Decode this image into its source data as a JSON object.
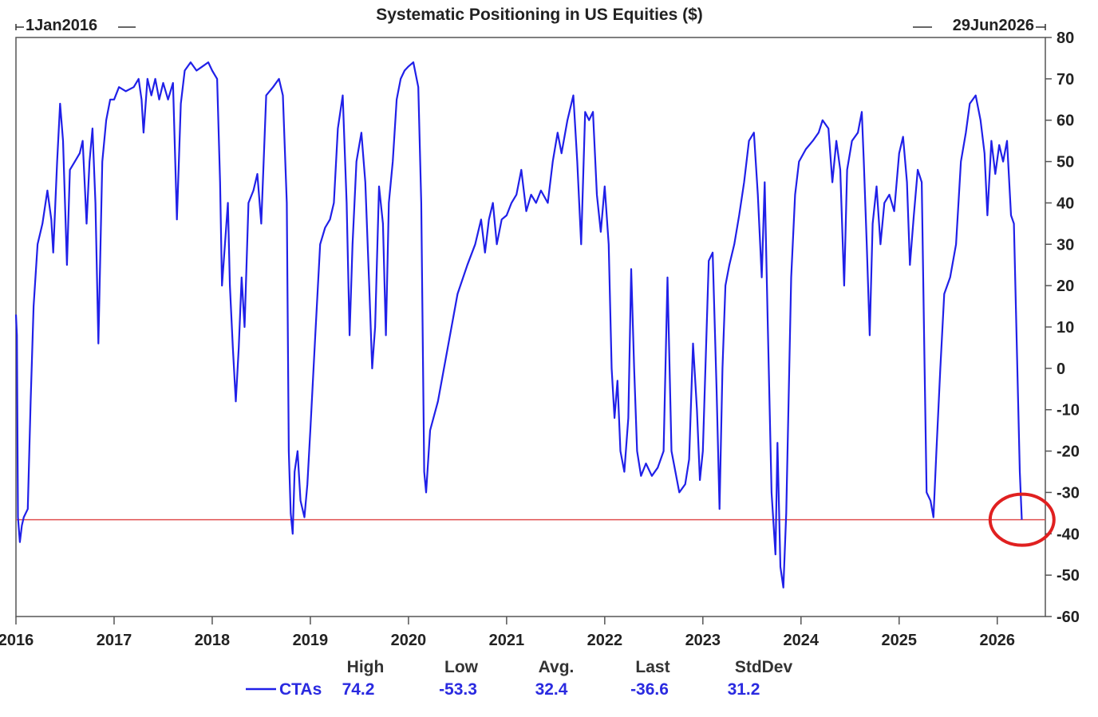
{
  "chart_data": {
    "type": "line",
    "title": "Systematic Positioning in US Equities ($)",
    "range_start_label": "1Jan2016",
    "range_end_label": "29Jun2026",
    "x_domain": [
      "2016-01-01",
      "2026-06-29"
    ],
    "x_tick_labels": [
      "2016",
      "2017",
      "2018",
      "2019",
      "2020",
      "2021",
      "2022",
      "2023",
      "2024",
      "2025",
      "2026"
    ],
    "y_ticks": [
      80,
      70,
      60,
      50,
      40,
      30,
      20,
      10,
      0,
      -10,
      -20,
      -30,
      -40,
      -50,
      -60
    ],
    "ylim": [
      -60,
      80
    ],
    "reference_line": {
      "value": -36.6,
      "color": "#e05050"
    },
    "highlight_circle": {
      "x": 2026.22,
      "y": -36.6,
      "color": "#e02020"
    },
    "series": [
      {
        "name": "CTAs",
        "color": "#2020e8",
        "points": [
          [
            2016.0,
            13
          ],
          [
            2016.01,
            8
          ],
          [
            2016.02,
            -36
          ],
          [
            2016.04,
            -42
          ],
          [
            2016.06,
            -38
          ],
          [
            2016.08,
            -36
          ],
          [
            2016.12,
            -34
          ],
          [
            2016.15,
            -8
          ],
          [
            2016.18,
            15
          ],
          [
            2016.22,
            30
          ],
          [
            2016.27,
            35
          ],
          [
            2016.32,
            43
          ],
          [
            2016.36,
            36
          ],
          [
            2016.38,
            28
          ],
          [
            2016.42,
            50
          ],
          [
            2016.45,
            64
          ],
          [
            2016.48,
            55
          ],
          [
            2016.52,
            25
          ],
          [
            2016.55,
            48
          ],
          [
            2016.6,
            50
          ],
          [
            2016.65,
            52
          ],
          [
            2016.68,
            55
          ],
          [
            2016.72,
            35
          ],
          [
            2016.75,
            50
          ],
          [
            2016.78,
            58
          ],
          [
            2016.81,
            40
          ],
          [
            2016.84,
            6
          ],
          [
            2016.88,
            50
          ],
          [
            2016.92,
            60
          ],
          [
            2016.96,
            65
          ],
          [
            2017.0,
            65
          ],
          [
            2017.05,
            68
          ],
          [
            2017.12,
            67
          ],
          [
            2017.2,
            68
          ],
          [
            2017.25,
            70
          ],
          [
            2017.28,
            65
          ],
          [
            2017.3,
            57
          ],
          [
            2017.34,
            70
          ],
          [
            2017.38,
            66
          ],
          [
            2017.42,
            70
          ],
          [
            2017.46,
            65
          ],
          [
            2017.5,
            69
          ],
          [
            2017.55,
            65
          ],
          [
            2017.6,
            69
          ],
          [
            2017.64,
            36
          ],
          [
            2017.68,
            64
          ],
          [
            2017.72,
            72
          ],
          [
            2017.78,
            74
          ],
          [
            2017.84,
            72
          ],
          [
            2017.9,
            73
          ],
          [
            2017.96,
            74
          ],
          [
            2018.0,
            72
          ],
          [
            2018.05,
            70
          ],
          [
            2018.08,
            45
          ],
          [
            2018.1,
            20
          ],
          [
            2018.13,
            30
          ],
          [
            2018.16,
            40
          ],
          [
            2018.18,
            20
          ],
          [
            2018.21,
            5
          ],
          [
            2018.24,
            -8
          ],
          [
            2018.27,
            5
          ],
          [
            2018.3,
            22
          ],
          [
            2018.33,
            10
          ],
          [
            2018.37,
            40
          ],
          [
            2018.42,
            43
          ],
          [
            2018.46,
            47
          ],
          [
            2018.5,
            35
          ],
          [
            2018.55,
            66
          ],
          [
            2018.62,
            68
          ],
          [
            2018.68,
            70
          ],
          [
            2018.72,
            66
          ],
          [
            2018.76,
            40
          ],
          [
            2018.78,
            -20
          ],
          [
            2018.8,
            -35
          ],
          [
            2018.82,
            -40
          ],
          [
            2018.84,
            -25
          ],
          [
            2018.87,
            -20
          ],
          [
            2018.9,
            -32
          ],
          [
            2018.94,
            -36
          ],
          [
            2018.97,
            -28
          ],
          [
            2019.0,
            -15
          ],
          [
            2019.05,
            8
          ],
          [
            2019.1,
            30
          ],
          [
            2019.15,
            34
          ],
          [
            2019.2,
            36
          ],
          [
            2019.24,
            40
          ],
          [
            2019.28,
            58
          ],
          [
            2019.33,
            66
          ],
          [
            2019.37,
            40
          ],
          [
            2019.4,
            8
          ],
          [
            2019.43,
            30
          ],
          [
            2019.47,
            50
          ],
          [
            2019.52,
            57
          ],
          [
            2019.56,
            45
          ],
          [
            2019.6,
            20
          ],
          [
            2019.63,
            0
          ],
          [
            2019.66,
            10
          ],
          [
            2019.7,
            44
          ],
          [
            2019.74,
            35
          ],
          [
            2019.77,
            8
          ],
          [
            2019.8,
            40
          ],
          [
            2019.84,
            50
          ],
          [
            2019.88,
            65
          ],
          [
            2019.92,
            70
          ],
          [
            2019.96,
            72
          ],
          [
            2020.0,
            73
          ],
          [
            2020.05,
            74
          ],
          [
            2020.1,
            68
          ],
          [
            2020.13,
            40
          ],
          [
            2020.16,
            -25
          ],
          [
            2020.18,
            -30
          ],
          [
            2020.22,
            -15
          ],
          [
            2020.3,
            -8
          ],
          [
            2020.4,
            5
          ],
          [
            2020.5,
            18
          ],
          [
            2020.6,
            25
          ],
          [
            2020.68,
            30
          ],
          [
            2020.74,
            36
          ],
          [
            2020.78,
            28
          ],
          [
            2020.82,
            36
          ],
          [
            2020.86,
            40
          ],
          [
            2020.9,
            30
          ],
          [
            2020.95,
            36
          ],
          [
            2021.0,
            37
          ],
          [
            2021.05,
            40
          ],
          [
            2021.1,
            42
          ],
          [
            2021.15,
            48
          ],
          [
            2021.2,
            38
          ],
          [
            2021.25,
            42
          ],
          [
            2021.3,
            40
          ],
          [
            2021.35,
            43
          ],
          [
            2021.42,
            40
          ],
          [
            2021.47,
            50
          ],
          [
            2021.52,
            57
          ],
          [
            2021.56,
            52
          ],
          [
            2021.62,
            60
          ],
          [
            2021.68,
            66
          ],
          [
            2021.72,
            50
          ],
          [
            2021.76,
            30
          ],
          [
            2021.8,
            62
          ],
          [
            2021.84,
            60
          ],
          [
            2021.88,
            62
          ],
          [
            2021.92,
            42
          ],
          [
            2021.96,
            33
          ],
          [
            2022.0,
            44
          ],
          [
            2022.04,
            30
          ],
          [
            2022.07,
            0
          ],
          [
            2022.1,
            -12
          ],
          [
            2022.13,
            -3
          ],
          [
            2022.16,
            -20
          ],
          [
            2022.2,
            -25
          ],
          [
            2022.24,
            -12
          ],
          [
            2022.27,
            24
          ],
          [
            2022.3,
            0
          ],
          [
            2022.33,
            -20
          ],
          [
            2022.37,
            -26
          ],
          [
            2022.42,
            -23
          ],
          [
            2022.48,
            -26
          ],
          [
            2022.54,
            -24
          ],
          [
            2022.6,
            -20
          ],
          [
            2022.64,
            22
          ],
          [
            2022.68,
            -20
          ],
          [
            2022.72,
            -25
          ],
          [
            2022.76,
            -30
          ],
          [
            2022.82,
            -28
          ],
          [
            2022.86,
            -22
          ],
          [
            2022.9,
            6
          ],
          [
            2022.94,
            -10
          ],
          [
            2022.97,
            -27
          ],
          [
            2023.0,
            -20
          ],
          [
            2023.06,
            26
          ],
          [
            2023.1,
            28
          ],
          [
            2023.14,
            -5
          ],
          [
            2023.17,
            -34
          ],
          [
            2023.2,
            0
          ],
          [
            2023.23,
            20
          ],
          [
            2023.27,
            25
          ],
          [
            2023.32,
            30
          ],
          [
            2023.37,
            37
          ],
          [
            2023.42,
            45
          ],
          [
            2023.47,
            55
          ],
          [
            2023.52,
            57
          ],
          [
            2023.56,
            42
          ],
          [
            2023.6,
            22
          ],
          [
            2023.63,
            45
          ],
          [
            2023.66,
            12
          ],
          [
            2023.7,
            -30
          ],
          [
            2023.74,
            -45
          ],
          [
            2023.76,
            -18
          ],
          [
            2023.79,
            -48
          ],
          [
            2023.82,
            -53
          ],
          [
            2023.85,
            -35
          ],
          [
            2023.9,
            22
          ],
          [
            2023.94,
            42
          ],
          [
            2023.98,
            50
          ],
          [
            2024.05,
            53
          ],
          [
            2024.12,
            55
          ],
          [
            2024.18,
            57
          ],
          [
            2024.22,
            60
          ],
          [
            2024.28,
            58
          ],
          [
            2024.32,
            45
          ],
          [
            2024.36,
            55
          ],
          [
            2024.4,
            48
          ],
          [
            2024.44,
            20
          ],
          [
            2024.47,
            48
          ],
          [
            2024.52,
            55
          ],
          [
            2024.58,
            57
          ],
          [
            2024.62,
            62
          ],
          [
            2024.64,
            50
          ],
          [
            2024.67,
            30
          ],
          [
            2024.7,
            8
          ],
          [
            2024.73,
            35
          ],
          [
            2024.77,
            44
          ],
          [
            2024.81,
            30
          ],
          [
            2024.85,
            40
          ],
          [
            2024.9,
            42
          ],
          [
            2024.95,
            38
          ],
          [
            2025.0,
            52
          ],
          [
            2025.04,
            56
          ],
          [
            2025.08,
            45
          ],
          [
            2025.11,
            25
          ],
          [
            2025.15,
            37
          ],
          [
            2025.19,
            48
          ],
          [
            2025.23,
            45
          ],
          [
            2025.26,
            0
          ],
          [
            2025.28,
            -30
          ],
          [
            2025.32,
            -32
          ],
          [
            2025.35,
            -36
          ],
          [
            2025.38,
            -20
          ],
          [
            2025.42,
            0
          ],
          [
            2025.46,
            18
          ],
          [
            2025.52,
            22
          ],
          [
            2025.58,
            30
          ],
          [
            2025.63,
            50
          ],
          [
            2025.68,
            57
          ],
          [
            2025.72,
            64
          ],
          [
            2025.78,
            66
          ],
          [
            2025.83,
            60
          ],
          [
            2025.87,
            52
          ],
          [
            2025.9,
            37
          ],
          [
            2025.94,
            55
          ],
          [
            2025.98,
            47
          ],
          [
            2026.02,
            54
          ],
          [
            2026.06,
            50
          ],
          [
            2026.1,
            55
          ],
          [
            2026.14,
            37
          ],
          [
            2026.17,
            35
          ],
          [
            2026.2,
            5
          ],
          [
            2026.23,
            -25
          ],
          [
            2026.25,
            -36.6
          ]
        ]
      }
    ],
    "stats": {
      "headers": [
        "High",
        "Low",
        "Avg.",
        "Last",
        "StdDev"
      ],
      "rows": [
        {
          "label": "CTAs",
          "values": [
            "74.2",
            "-53.3",
            "32.4",
            "-36.6",
            "31.2"
          ]
        }
      ]
    }
  }
}
